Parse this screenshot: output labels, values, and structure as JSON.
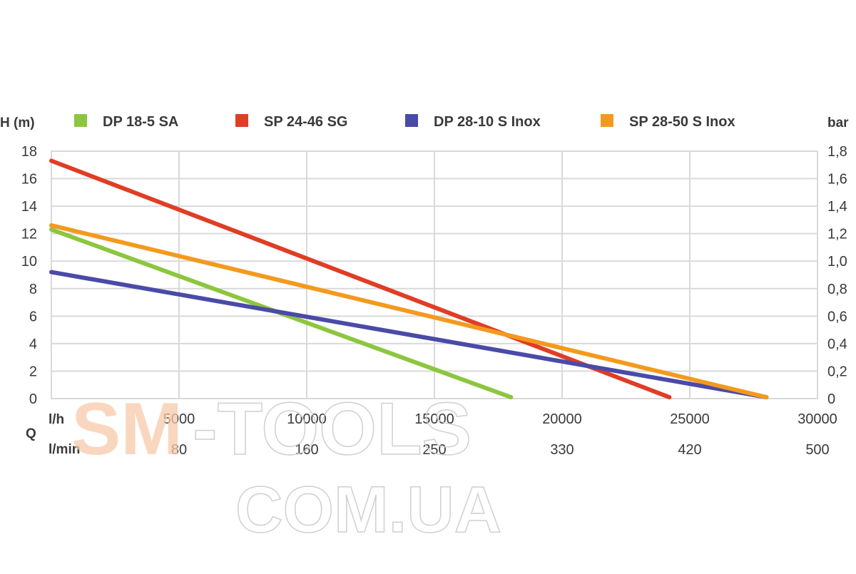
{
  "chart_data": {
    "type": "line",
    "y_label": "H (m)",
    "y2_label": "bar",
    "x_label": "Q",
    "x_unit_top": "l/h",
    "x_unit_bottom": "l/min",
    "xlim": [
      0,
      30000
    ],
    "ylim": [
      0,
      18
    ],
    "grid": true,
    "legend_position": "top",
    "x_ticks": [
      0,
      5000,
      10000,
      15000,
      20000,
      25000,
      30000
    ],
    "x_tick_labels": [
      "",
      "5000",
      "10000",
      "15000",
      "20000",
      "25000",
      "30000"
    ],
    "x_tick_labels_min": [
      "",
      "80",
      "160",
      "250",
      "330",
      "420",
      "500"
    ],
    "y_ticks": [
      0,
      2,
      4,
      6,
      8,
      10,
      12,
      14,
      16,
      18
    ],
    "y_tick_labels": [
      "0",
      "2",
      "4",
      "6",
      "8",
      "10",
      "12",
      "14",
      "16",
      "18"
    ],
    "y2_tick_labels": [
      "0",
      "0,2",
      "0,4",
      "0,6",
      "0,8",
      "1,0",
      "1,2",
      "1,4",
      "1,6",
      "1,8"
    ],
    "series": [
      {
        "name": "DP 18-5 SA",
        "color": "#8cc63f",
        "points": [
          [
            0,
            12.3
          ],
          [
            18000,
            0.1
          ]
        ]
      },
      {
        "name": "SP 24-46 SG",
        "color": "#e03d25",
        "points": [
          [
            0,
            17.3
          ],
          [
            24200,
            0.1
          ]
        ]
      },
      {
        "name": "DP 28-10 S Inox",
        "color": "#4a4aa8",
        "points": [
          [
            0,
            9.2
          ],
          [
            28000,
            0.1
          ]
        ]
      },
      {
        "name": "SP 28-50 S Inox",
        "color": "#f39a1e",
        "points": [
          [
            0,
            12.6
          ],
          [
            28000,
            0.1
          ]
        ]
      }
    ]
  },
  "watermark": {
    "line1_a": "SM",
    "line1_b": "-TOOLS",
    "line2": "COM.UA",
    "accent_color": "#f7c9a8"
  }
}
